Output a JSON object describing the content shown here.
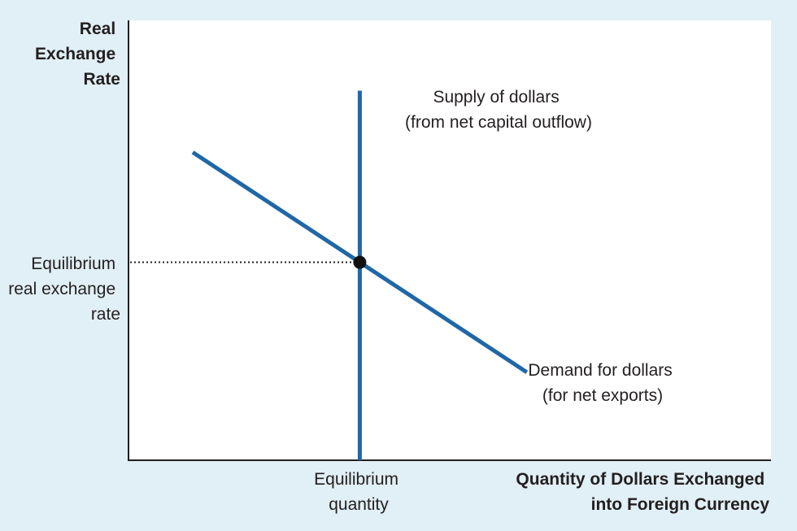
{
  "chart_data": {
    "type": "line",
    "title": "",
    "ylabel": [
      "Real",
      "Exchange",
      "Rate"
    ],
    "xlabel": [
      "Quantity of Dollars Exchanged",
      "into Foreign Currency"
    ],
    "series": [
      {
        "name": "Supply of dollars (from net capital outflow)",
        "label_lines": [
          "Supply of dollars",
          "(from net capital outflow)"
        ],
        "color": "#1f67a6",
        "kind": "vertical",
        "x": [
          0.36,
          0.36
        ],
        "y": [
          0,
          0.84
        ]
      },
      {
        "name": "Demand for dollars (for net exports)",
        "label_lines": [
          "Demand for dollars",
          "(for net exports)"
        ],
        "color": "#1f67a6",
        "kind": "downward-sloping",
        "x": [
          0.1,
          0.62
        ],
        "y": [
          0.7,
          0.2
        ]
      }
    ],
    "equilibrium": {
      "x": 0.36,
      "y": 0.45,
      "x_label_lines": [
        "Equilibrium",
        "quantity"
      ],
      "y_label_lines": [
        "Equilibrium",
        "real exchange",
        "rate"
      ]
    },
    "grid": false,
    "legend": "none (curves labeled directly)"
  },
  "colors": {
    "background": "#e1eff6",
    "plot_area": "#ffffff",
    "curves": "#1f67a6",
    "text": "#231f20"
  }
}
